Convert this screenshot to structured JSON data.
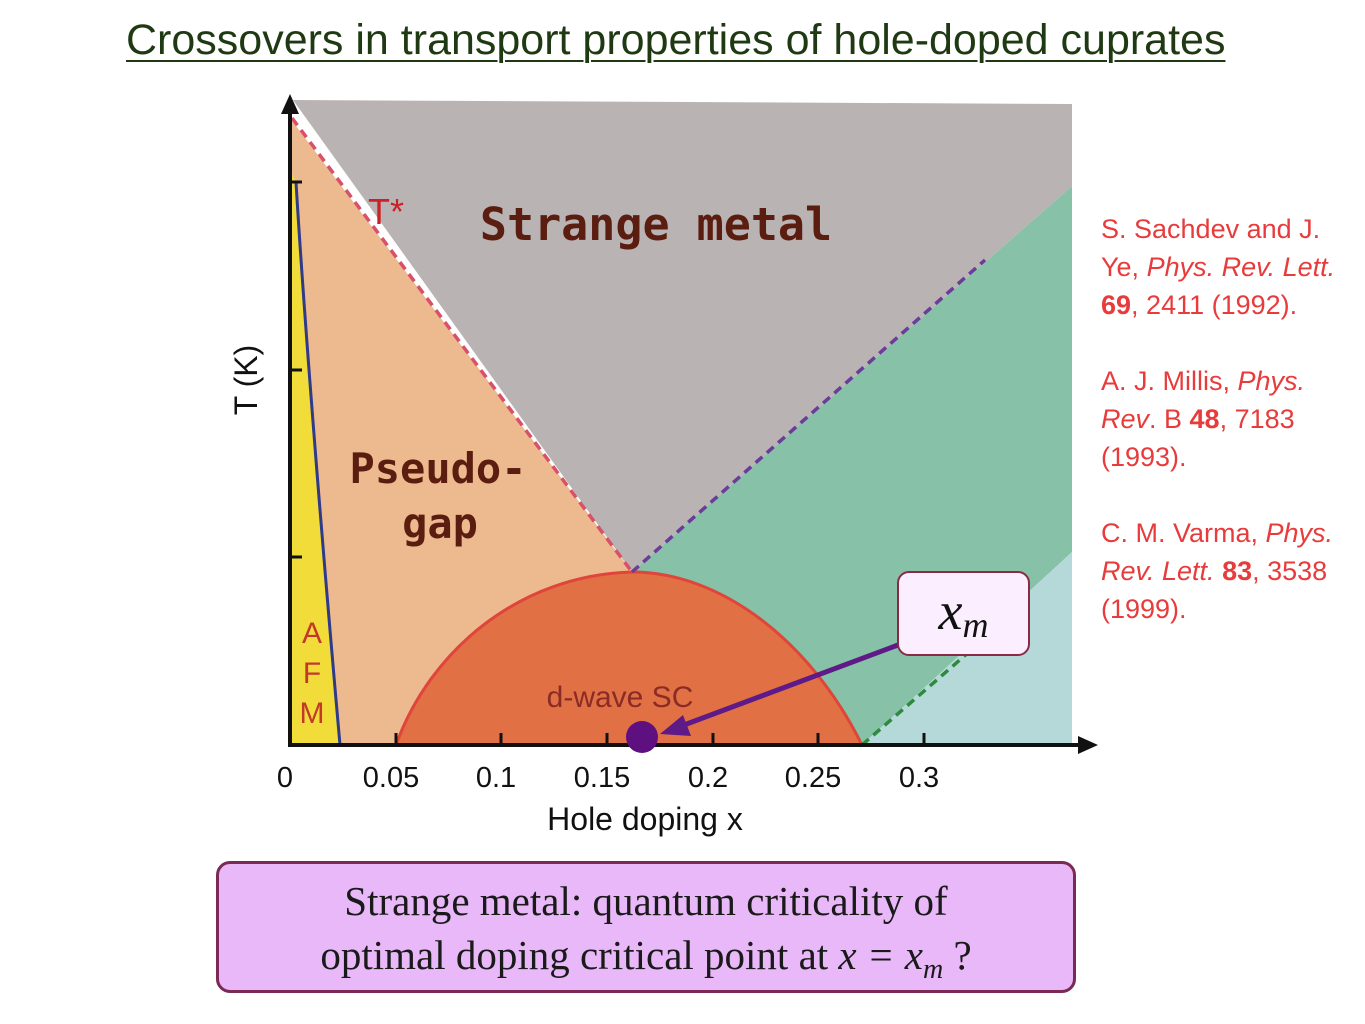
{
  "title": "Crossovers in transport properties of hole-doped cuprates",
  "diagram": {
    "y_axis_label": "T (K)",
    "x_axis_label": "Hole doping x",
    "x_ticks": [
      "0",
      "0.05",
      "0.1",
      "0.15",
      "0.2",
      "0.25",
      "0.3"
    ],
    "regions": {
      "strange_metal": "Strange metal",
      "pseudogap_line1": "Pseudo-",
      "pseudogap_line2": "gap",
      "tstar": "T*",
      "sc": "d-wave SC",
      "afm": [
        "A",
        "F",
        "M"
      ]
    },
    "colors": {
      "strange_metal": "#b9b4b3",
      "pseudogap": "#edb98f",
      "afm": "#f2dc3a",
      "sc": "#e27045",
      "fermi_liquid_green": "#86c1a8",
      "overdoped_blue": "#b5d9d9"
    }
  },
  "callout": {
    "symbol": "x",
    "subscript": "m"
  },
  "references": [
    {
      "parts": [
        [
          "S. Sachdev and J. Ye, ",
          "n"
        ],
        [
          "Phys. Rev. Lett.",
          "i"
        ],
        [
          " ",
          "n"
        ],
        [
          "69",
          "b"
        ],
        [
          ", 2411 (1992).",
          "n"
        ]
      ]
    },
    {
      "parts": [
        [
          " A. J. Millis, ",
          "n"
        ],
        [
          "Phys. Rev",
          "i"
        ],
        [
          ". B ",
          "n"
        ],
        [
          "48",
          "b"
        ],
        [
          ", 7183 (1993).",
          "n"
        ]
      ]
    },
    {
      "parts": [
        [
          "C. M. Varma, ",
          "n"
        ],
        [
          "Phys. Rev. Lett.",
          "i"
        ],
        [
          " ",
          "n"
        ],
        [
          "83",
          "b"
        ],
        [
          ", 3538 (1999).",
          "n"
        ]
      ]
    }
  ],
  "bottom_box": {
    "line1": "Strange metal: quantum criticality of",
    "line2_prefix": "optimal doping critical point at ",
    "line2_math": "x = x",
    "line2_sub": "m",
    "line2_suffix": " ?"
  }
}
